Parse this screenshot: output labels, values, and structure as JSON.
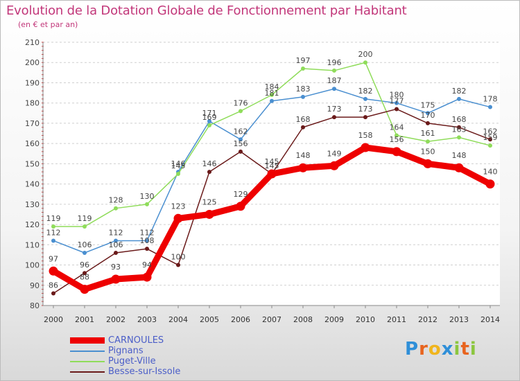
{
  "title": "Evolution de la Dotation Globale de Fonctionnement par Habitant",
  "subtitle": "(en € et par an)",
  "logo": {
    "text": "Proxiti",
    "letters": [
      "P",
      "r",
      "o",
      "x",
      "i",
      "t",
      "i"
    ],
    "colors": [
      "#2f8fd8",
      "#e8641e",
      "#f0b51d",
      "#2f8fd8",
      "#8cc63f",
      "#e8641e",
      "#8cc63f"
    ]
  },
  "chart_data": {
    "type": "line",
    "title": "Evolution de la Dotation Globale de Fonctionnement par Habitant",
    "subtitle": "(en € et par an)",
    "xlabel": "",
    "ylabel": "",
    "x": [
      "2000",
      "2001",
      "2002",
      "2003",
      "2004",
      "2005",
      "2006",
      "2007",
      "2008",
      "2009",
      "2010",
      "2011",
      "2012",
      "2013",
      "2014"
    ],
    "ylim": [
      80,
      210
    ],
    "yticks": [
      80,
      90,
      100,
      110,
      120,
      130,
      140,
      150,
      160,
      170,
      180,
      190,
      200,
      210
    ],
    "grid": "horizontal dashed",
    "legend_position": "bottom-left",
    "series": [
      {
        "name": "CARNOULES",
        "color": "#ee0000",
        "values": [
          97,
          88,
          93,
          94,
          123,
          125,
          129,
          145,
          148,
          149,
          158,
          156,
          150,
          148,
          140
        ]
      },
      {
        "name": "Pignans",
        "color": "#4a8fd0",
        "values": [
          112,
          106,
          112,
          112,
          146,
          171,
          162,
          181,
          183,
          187,
          182,
          180,
          175,
          182,
          178
        ]
      },
      {
        "name": "Puget-Ville",
        "color": "#8fdc5a",
        "values": [
          119,
          119,
          128,
          130,
          145,
          169,
          176,
          184,
          197,
          196,
          200,
          164,
          161,
          163,
          159
        ]
      },
      {
        "name": "Besse-sur-Issole",
        "color": "#6a1a1a",
        "values": [
          86,
          96,
          106,
          108,
          100,
          146,
          156,
          145,
          168,
          173,
          173,
          177,
          170,
          168,
          162
        ]
      }
    ]
  }
}
